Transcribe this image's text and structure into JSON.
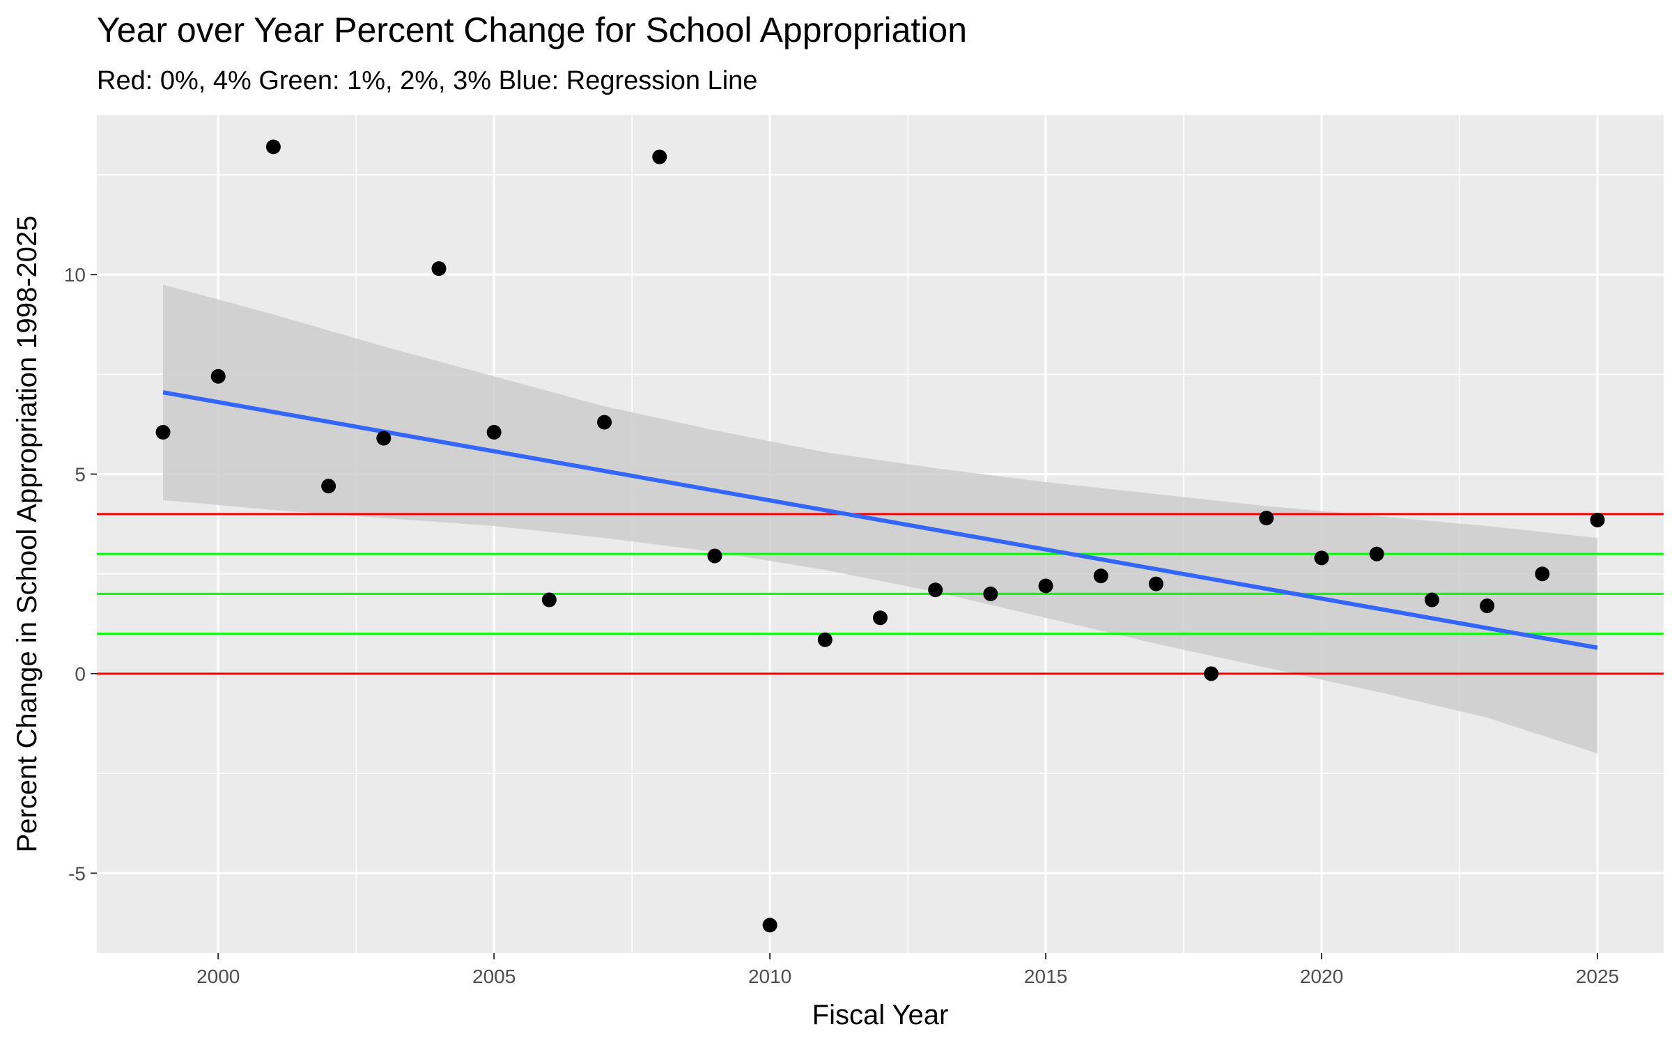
{
  "chart_data": {
    "type": "scatter",
    "title": "Year over Year Percent Change for School Appropriation",
    "subtitle": "Red: 0%, 4%  Green: 1%, 2%, 3%  Blue: Regression Line",
    "xlabel": "Fiscal Year",
    "ylabel": "Percent Change in School Appropriation 1998-2025",
    "xlim": [
      1997.8,
      2026.2
    ],
    "ylim": [
      -7.0,
      14.0
    ],
    "x_ticks": [
      2000,
      2005,
      2010,
      2015,
      2020,
      2025
    ],
    "x_minor_ticks": [
      2002.5,
      2007.5,
      2012.5,
      2017.5,
      2022.5
    ],
    "y_ticks": [
      -5,
      0,
      5,
      10
    ],
    "y_minor_ticks": [
      -2.5,
      2.5,
      7.5,
      12.5
    ],
    "grid": true,
    "points": [
      {
        "x": 1999,
        "y": 6.05
      },
      {
        "x": 2000,
        "y": 7.45
      },
      {
        "x": 2001,
        "y": 13.2
      },
      {
        "x": 2002,
        "y": 4.7
      },
      {
        "x": 2003,
        "y": 5.9
      },
      {
        "x": 2004,
        "y": 10.15
      },
      {
        "x": 2005,
        "y": 6.05
      },
      {
        "x": 2006,
        "y": 1.85
      },
      {
        "x": 2007,
        "y": 6.3
      },
      {
        "x": 2008,
        "y": 12.95
      },
      {
        "x": 2009,
        "y": 2.95
      },
      {
        "x": 2010,
        "y": -6.3
      },
      {
        "x": 2011,
        "y": 0.85
      },
      {
        "x": 2012,
        "y": 1.4
      },
      {
        "x": 2013,
        "y": 2.1
      },
      {
        "x": 2014,
        "y": 2.0
      },
      {
        "x": 2015,
        "y": 2.2
      },
      {
        "x": 2016,
        "y": 2.45
      },
      {
        "x": 2017,
        "y": 2.25
      },
      {
        "x": 2018,
        "y": 0.0
      },
      {
        "x": 2019,
        "y": 3.9
      },
      {
        "x": 2020,
        "y": 2.9
      },
      {
        "x": 2021,
        "y": 3.0
      },
      {
        "x": 2022,
        "y": 1.85
      },
      {
        "x": 2023,
        "y": 1.7
      },
      {
        "x": 2024,
        "y": 2.5
      },
      {
        "x": 2025,
        "y": 3.85
      }
    ],
    "reference_lines": [
      {
        "name": "red-0",
        "y": 0,
        "color": "#ff0000"
      },
      {
        "name": "red-4",
        "y": 4,
        "color": "#ff0000"
      },
      {
        "name": "green-1",
        "y": 1,
        "color": "#00ff00"
      },
      {
        "name": "green-2",
        "y": 2,
        "color": "#00ff00"
      },
      {
        "name": "green-3",
        "y": 3,
        "color": "#00ff00"
      }
    ],
    "regression": {
      "x_start": 1999,
      "y_start": 7.05,
      "x_end": 2025,
      "y_end": 0.65,
      "color": "#3366ff",
      "confidence_band": [
        {
          "x": 1999,
          "lower": 4.35,
          "upper": 9.75
        },
        {
          "x": 2001,
          "lower": 4.1,
          "upper": 9.0
        },
        {
          "x": 2003,
          "lower": 3.9,
          "upper": 8.2
        },
        {
          "x": 2005,
          "lower": 3.7,
          "upper": 7.45
        },
        {
          "x": 2007,
          "lower": 3.4,
          "upper": 6.7
        },
        {
          "x": 2009,
          "lower": 3.05,
          "upper": 6.1
        },
        {
          "x": 2011,
          "lower": 2.6,
          "upper": 5.55
        },
        {
          "x": 2013,
          "lower": 2.05,
          "upper": 5.15
        },
        {
          "x": 2015,
          "lower": 1.4,
          "upper": 4.8
        },
        {
          "x": 2017,
          "lower": 0.75,
          "upper": 4.5
        },
        {
          "x": 2019,
          "lower": 0.15,
          "upper": 4.2
        },
        {
          "x": 2021,
          "lower": -0.45,
          "upper": 3.95
        },
        {
          "x": 2023,
          "lower": -1.1,
          "upper": 3.7
        },
        {
          "x": 2025,
          "lower": -2.0,
          "upper": 3.4
        }
      ]
    },
    "colors": {
      "panel": "#ebebeb",
      "grid": "#ffffff",
      "point": "#000000",
      "band": "#cccccc"
    }
  }
}
